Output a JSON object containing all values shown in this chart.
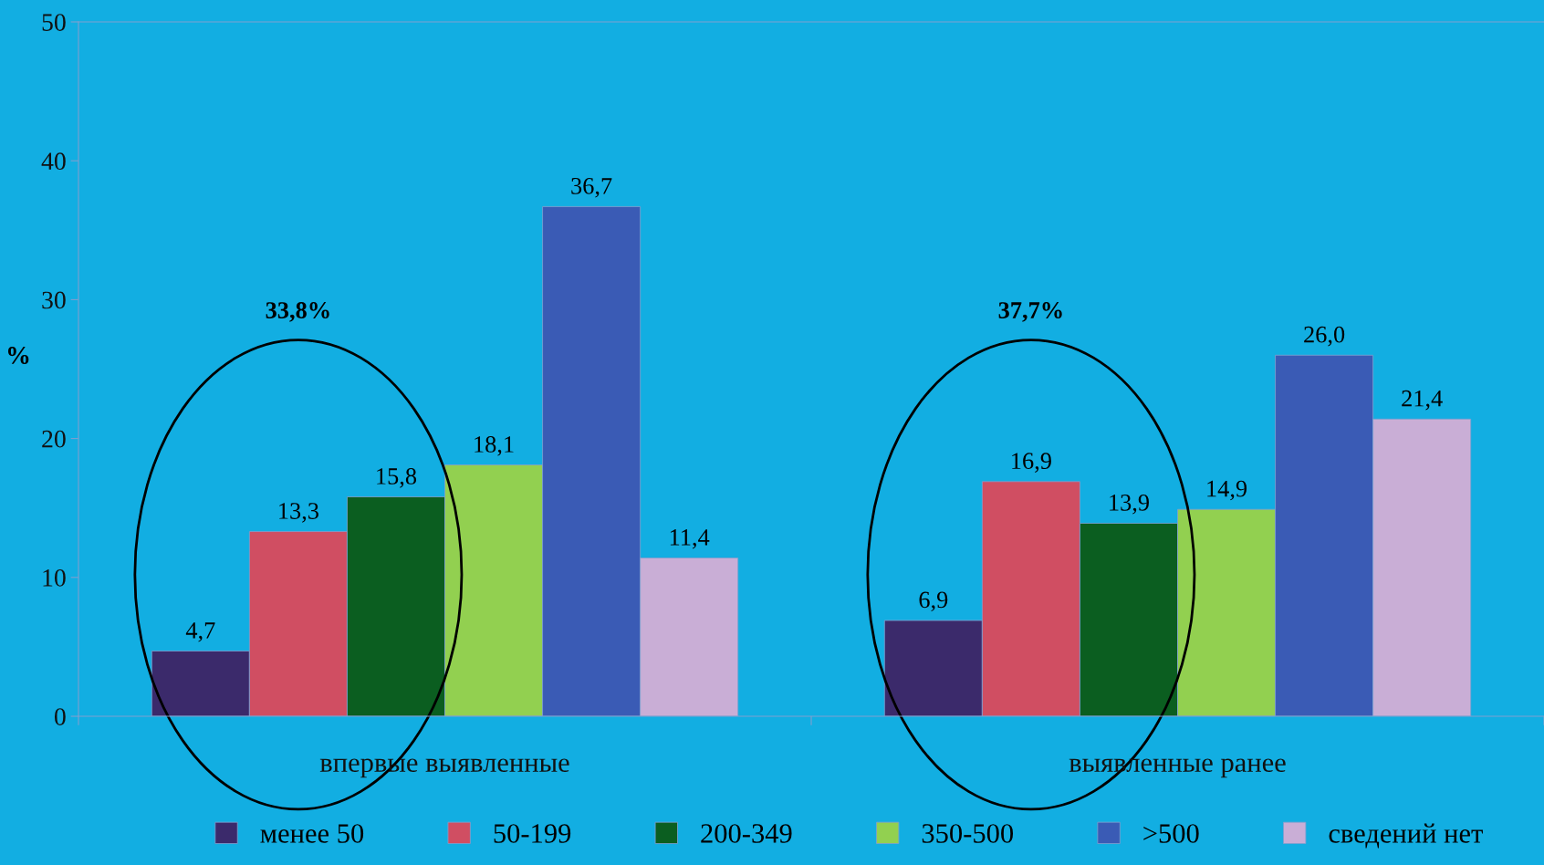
{
  "chart_data": {
    "type": "bar",
    "ylabel": "%",
    "categories": [
      "впервые выявленные",
      "выявленные ранее"
    ],
    "series": [
      {
        "name": "менее 50",
        "color": "#3b2a6b",
        "values": [
          4.7,
          6.9
        ]
      },
      {
        "name": "50-199",
        "color": "#d04e62",
        "values": [
          13.3,
          16.9
        ]
      },
      {
        "name": "200-349",
        "color": "#0b5e20",
        "values": [
          15.8,
          13.9
        ]
      },
      {
        "name": "350-500",
        "color": "#92d050",
        "values": [
          18.1,
          14.9
        ]
      },
      {
        "name": ">500",
        "color": "#3a5bb5",
        "values": [
          36.7,
          26.0
        ]
      },
      {
        "name": "сведений нет",
        "color": "#c9aed6",
        "values": [
          11.4,
          21.4
        ]
      }
    ],
    "value_labels": [
      [
        "4,7",
        "6,9"
      ],
      [
        "13,3",
        "16,9"
      ],
      [
        "15,8",
        "13,9"
      ],
      [
        "18,1",
        "14,9"
      ],
      [
        "36,7",
        "26,0"
      ],
      [
        "11,4",
        "21,4"
      ]
    ],
    "ylim": [
      0,
      50
    ],
    "yticks": [
      0,
      10,
      20,
      30,
      40,
      50
    ],
    "annotations": [
      "33,8%",
      "37,7%"
    ],
    "legend": "bottom",
    "grid": false
  }
}
